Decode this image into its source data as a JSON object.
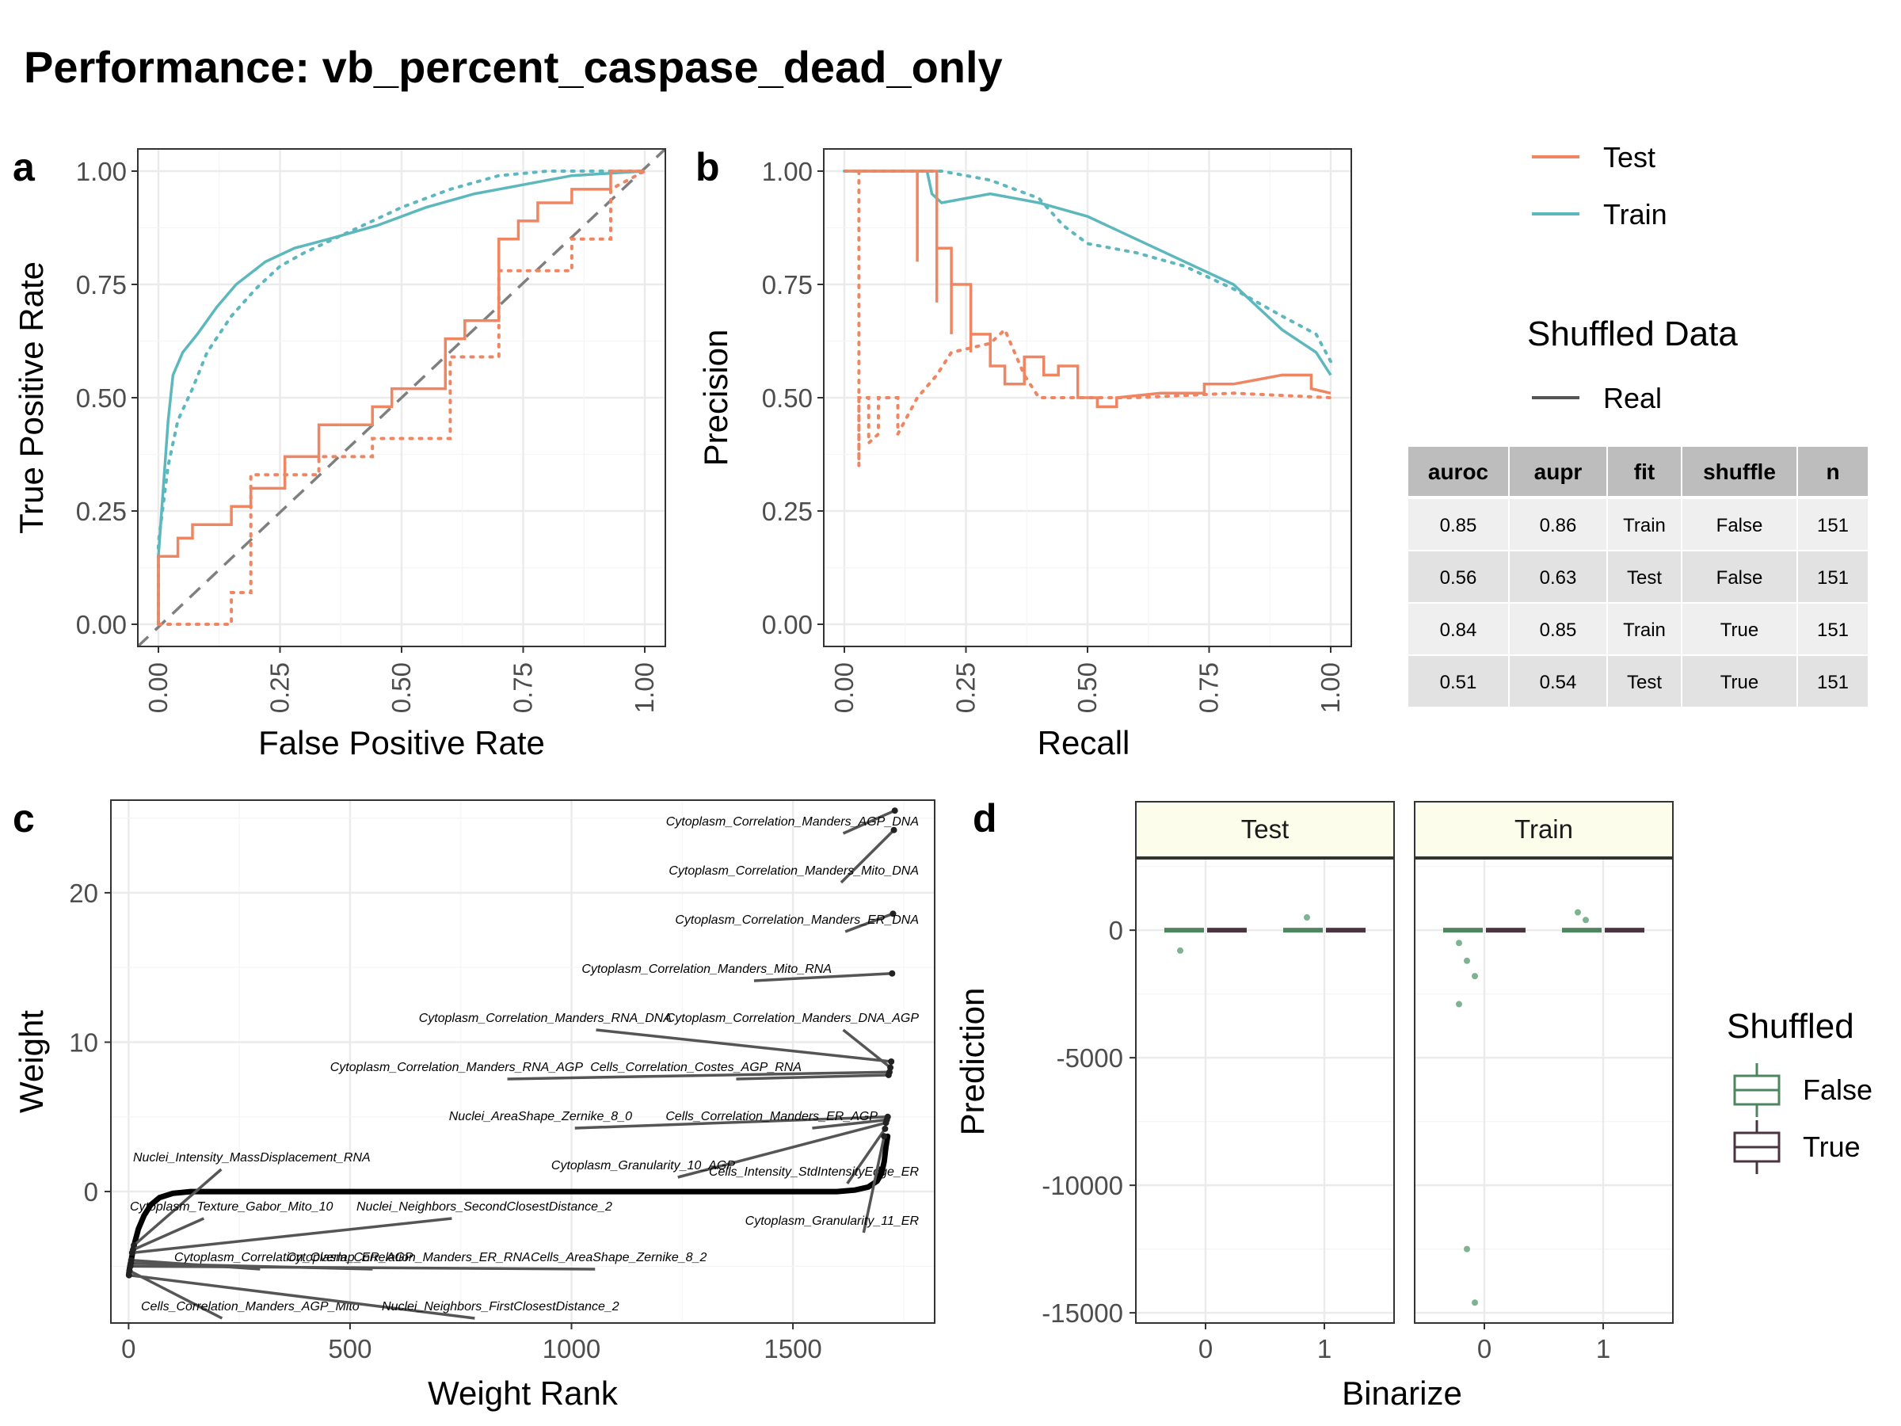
{
  "title": "Performance: vb_percent_caspase_dead_only",
  "colors": {
    "test": "#F08561",
    "train": "#5DB8BE",
    "false": "#4E8560",
    "true": "#4A3440",
    "diag": "#7f7f7f",
    "grid": "#ebebeb"
  },
  "legend": {
    "series": [
      "Test",
      "Train"
    ],
    "shuffle_title": "Shuffled Data",
    "shuffle_item": "Real",
    "shuffled_title": "Shuffled",
    "shuffled_items": [
      "False",
      "True"
    ]
  },
  "table": {
    "headers": [
      "auroc",
      "aupr",
      "fit",
      "shuffle",
      "n"
    ],
    "rows": [
      [
        "0.85",
        "0.86",
        "Train",
        "False",
        "151"
      ],
      [
        "0.56",
        "0.63",
        "Test",
        "False",
        "151"
      ],
      [
        "0.84",
        "0.85",
        "Train",
        "True",
        "151"
      ],
      [
        "0.51",
        "0.54",
        "Test",
        "True",
        "151"
      ]
    ]
  },
  "chart_data": [
    {
      "panel": "a",
      "type": "line",
      "xlabel": "False Positive Rate",
      "ylabel": "True Positive Rate",
      "xlim": [
        0,
        1
      ],
      "ylim": [
        0,
        1
      ],
      "ticks": [
        "0.00",
        "0.25",
        "0.50",
        "0.75",
        "1.00"
      ],
      "series": [
        {
          "name": "Train",
          "shuffled": false,
          "points": [
            [
              0,
              0
            ],
            [
              0,
              0.15
            ],
            [
              0.01,
              0.3
            ],
            [
              0.02,
              0.45
            ],
            [
              0.03,
              0.55
            ],
            [
              0.05,
              0.6
            ],
            [
              0.08,
              0.64
            ],
            [
              0.12,
              0.7
            ],
            [
              0.16,
              0.75
            ],
            [
              0.22,
              0.8
            ],
            [
              0.28,
              0.83
            ],
            [
              0.35,
              0.85
            ],
            [
              0.45,
              0.88
            ],
            [
              0.55,
              0.92
            ],
            [
              0.65,
              0.95
            ],
            [
              0.75,
              0.97
            ],
            [
              0.85,
              0.99
            ],
            [
              1,
              1
            ]
          ]
        },
        {
          "name": "Train",
          "shuffled": true,
          "points": [
            [
              0,
              0
            ],
            [
              0,
              0.18
            ],
            [
              0.02,
              0.35
            ],
            [
              0.04,
              0.45
            ],
            [
              0.07,
              0.52
            ],
            [
              0.1,
              0.6
            ],
            [
              0.15,
              0.68
            ],
            [
              0.2,
              0.74
            ],
            [
              0.25,
              0.79
            ],
            [
              0.3,
              0.82
            ],
            [
              0.4,
              0.87
            ],
            [
              0.5,
              0.92
            ],
            [
              0.6,
              0.96
            ],
            [
              0.7,
              0.99
            ],
            [
              0.8,
              1
            ],
            [
              1,
              1
            ]
          ]
        },
        {
          "name": "Test",
          "shuffled": false,
          "points": [
            [
              0,
              0
            ],
            [
              0,
              0.15
            ],
            [
              0.04,
              0.15
            ],
            [
              0.04,
              0.19
            ],
            [
              0.07,
              0.19
            ],
            [
              0.07,
              0.22
            ],
            [
              0.15,
              0.22
            ],
            [
              0.15,
              0.26
            ],
            [
              0.19,
              0.26
            ],
            [
              0.19,
              0.3
            ],
            [
              0.26,
              0.3
            ],
            [
              0.26,
              0.37
            ],
            [
              0.33,
              0.37
            ],
            [
              0.33,
              0.44
            ],
            [
              0.44,
              0.44
            ],
            [
              0.44,
              0.48
            ],
            [
              0.48,
              0.48
            ],
            [
              0.48,
              0.52
            ],
            [
              0.59,
              0.52
            ],
            [
              0.59,
              0.63
            ],
            [
              0.63,
              0.63
            ],
            [
              0.63,
              0.67
            ],
            [
              0.7,
              0.67
            ],
            [
              0.7,
              0.85
            ],
            [
              0.74,
              0.85
            ],
            [
              0.74,
              0.89
            ],
            [
              0.78,
              0.89
            ],
            [
              0.78,
              0.93
            ],
            [
              0.85,
              0.93
            ],
            [
              0.85,
              0.96
            ],
            [
              0.93,
              0.96
            ],
            [
              0.93,
              1
            ],
            [
              1,
              1
            ]
          ]
        },
        {
          "name": "Test",
          "shuffled": true,
          "points": [
            [
              0,
              0
            ],
            [
              0.15,
              0
            ],
            [
              0.15,
              0.07
            ],
            [
              0.19,
              0.07
            ],
            [
              0.19,
              0.33
            ],
            [
              0.33,
              0.33
            ],
            [
              0.33,
              0.37
            ],
            [
              0.44,
              0.37
            ],
            [
              0.44,
              0.41
            ],
            [
              0.6,
              0.41
            ],
            [
              0.6,
              0.59
            ],
            [
              0.7,
              0.59
            ],
            [
              0.7,
              0.78
            ],
            [
              0.85,
              0.78
            ],
            [
              0.85,
              0.85
            ],
            [
              0.93,
              0.85
            ],
            [
              0.93,
              0.96
            ],
            [
              1,
              1
            ]
          ]
        }
      ]
    },
    {
      "panel": "b",
      "type": "line",
      "xlabel": "Recall",
      "ylabel": "Precision",
      "xlim": [
        0,
        1
      ],
      "ylim": [
        0,
        1
      ],
      "ticks": [
        "0.00",
        "0.25",
        "0.50",
        "0.75",
        "1.00"
      ],
      "series": [
        {
          "name": "Train",
          "shuffled": false,
          "points": [
            [
              0,
              1
            ],
            [
              0.17,
              1
            ],
            [
              0.18,
              0.95
            ],
            [
              0.2,
              0.93
            ],
            [
              0.3,
              0.95
            ],
            [
              0.4,
              0.93
            ],
            [
              0.5,
              0.9
            ],
            [
              0.6,
              0.85
            ],
            [
              0.7,
              0.8
            ],
            [
              0.8,
              0.75
            ],
            [
              0.9,
              0.65
            ],
            [
              0.97,
              0.6
            ],
            [
              1,
              0.55
            ]
          ]
        },
        {
          "name": "Train",
          "shuffled": true,
          "points": [
            [
              0,
              1
            ],
            [
              0.2,
              1
            ],
            [
              0.3,
              0.98
            ],
            [
              0.4,
              0.94
            ],
            [
              0.45,
              0.88
            ],
            [
              0.5,
              0.84
            ],
            [
              0.6,
              0.82
            ],
            [
              0.7,
              0.79
            ],
            [
              0.8,
              0.74
            ],
            [
              0.9,
              0.68
            ],
            [
              0.97,
              0.64
            ],
            [
              1,
              0.58
            ]
          ]
        },
        {
          "name": "Test",
          "shuffled": false,
          "points": [
            [
              0,
              1
            ],
            [
              0.15,
              1
            ],
            [
              0.15,
              0.8
            ],
            [
              0.15,
              1
            ],
            [
              0.19,
              1
            ],
            [
              0.19,
              0.71
            ],
            [
              0.19,
              0.83
            ],
            [
              0.22,
              0.83
            ],
            [
              0.22,
              0.64
            ],
            [
              0.22,
              0.75
            ],
            [
              0.26,
              0.75
            ],
            [
              0.26,
              0.6
            ],
            [
              0.26,
              0.64
            ],
            [
              0.3,
              0.64
            ],
            [
              0.3,
              0.57
            ],
            [
              0.33,
              0.57
            ],
            [
              0.33,
              0.53
            ],
            [
              0.37,
              0.53
            ],
            [
              0.37,
              0.59
            ],
            [
              0.41,
              0.59
            ],
            [
              0.41,
              0.55
            ],
            [
              0.44,
              0.55
            ],
            [
              0.44,
              0.57
            ],
            [
              0.48,
              0.57
            ],
            [
              0.48,
              0.5
            ],
            [
              0.52,
              0.5
            ],
            [
              0.52,
              0.48
            ],
            [
              0.56,
              0.48
            ],
            [
              0.56,
              0.5
            ],
            [
              0.65,
              0.51
            ],
            [
              0.74,
              0.51
            ],
            [
              0.74,
              0.53
            ],
            [
              0.8,
              0.53
            ],
            [
              0.85,
              0.54
            ],
            [
              0.9,
              0.55
            ],
            [
              0.96,
              0.55
            ],
            [
              0.96,
              0.52
            ],
            [
              1,
              0.51
            ]
          ]
        },
        {
          "name": "Test",
          "shuffled": true,
          "points": [
            [
              0.03,
              1
            ],
            [
              0.03,
              0.35
            ],
            [
              0.03,
              0.5
            ],
            [
              0.05,
              0.5
            ],
            [
              0.05,
              0.4
            ],
            [
              0.07,
              0.42
            ],
            [
              0.07,
              0.5
            ],
            [
              0.11,
              0.5
            ],
            [
              0.11,
              0.42
            ],
            [
              0.15,
              0.5
            ],
            [
              0.19,
              0.55
            ],
            [
              0.22,
              0.6
            ],
            [
              0.3,
              0.62
            ],
            [
              0.33,
              0.65
            ],
            [
              0.37,
              0.55
            ],
            [
              0.4,
              0.5
            ],
            [
              0.6,
              0.5
            ],
            [
              0.8,
              0.51
            ],
            [
              1,
              0.5
            ]
          ]
        }
      ]
    },
    {
      "panel": "c",
      "type": "scatter",
      "xlabel": "Weight Rank",
      "ylabel": "Weight",
      "xlim": [
        -40,
        1820
      ],
      "ylim": [
        -8.8,
        26.2
      ],
      "xticks": [
        0,
        500,
        1000,
        1500
      ],
      "yticks": [
        0,
        10,
        20
      ],
      "labeled_points": [
        {
          "label": "Cytoplasm_Correlation_Manders_AGP_DNA",
          "rank": 1730,
          "weight": 25.5
        },
        {
          "label": "Cytoplasm_Correlation_Manders_Mito_DNA",
          "rank": 1728,
          "weight": 24.2
        },
        {
          "label": "Cytoplasm_Correlation_Manders_ER_DNA",
          "rank": 1726,
          "weight": 18.6
        },
        {
          "label": "Cytoplasm_Correlation_Manders_Mito_RNA",
          "rank": 1724,
          "weight": 14.6
        },
        {
          "label": "Cytoplasm_Correlation_Manders_RNA_DNA",
          "rank": 1722,
          "weight": 8.7
        },
        {
          "label": "Cytoplasm_Correlation_Manders_DNA_AGP",
          "rank": 1720,
          "weight": 8.3
        },
        {
          "label": "Cytoplasm_Correlation_Manders_RNA_AGP",
          "rank": 1718,
          "weight": 8.0
        },
        {
          "label": "Cells_Correlation_Costes_AGP_RNA",
          "rank": 1716,
          "weight": 7.8
        },
        {
          "label": "Nuclei_AreaShape_Zernike_8_0",
          "rank": 1714,
          "weight": 5.0
        },
        {
          "label": "Cells_Correlation_Manders_ER_AGP",
          "rank": 1712,
          "weight": 4.8
        },
        {
          "label": "Cytoplasm_Granularity_10_AGP",
          "rank": 1710,
          "weight": 4.6
        },
        {
          "label": "Cells_Intensity_StdIntensityEdge_ER",
          "rank": 1708,
          "weight": 4.2
        },
        {
          "label": "Cytoplasm_Granularity_11_ER",
          "rank": 1706,
          "weight": 3.7
        },
        {
          "label": "Nuclei_Intensity_MassDisplacement_RNA",
          "rank": 12,
          "weight": -3.6
        },
        {
          "label": "Cytoplasm_Texture_Gabor_Mito_10",
          "rank": 10,
          "weight": -3.9
        },
        {
          "label": "Nuclei_Neighbors_SecondClosestDistance_2",
          "rank": 8,
          "weight": -4.1
        },
        {
          "label": "Cytoplasm_Correlation_Overlap_ER_AGP",
          "rank": 6,
          "weight": -4.6
        },
        {
          "label": "Cytoplasm_Correlation_Manders_ER_RNA",
          "rank": 5,
          "weight": -4.8
        },
        {
          "label": "Cells_AreaShape_Zernike_8_2",
          "rank": 4,
          "weight": -5.0
        },
        {
          "label": "Cells_Correlation_Manders_AGP_Mito",
          "rank": 2,
          "weight": -5.3
        },
        {
          "label": "Nuclei_Neighbors_FirstClosestDistance_2",
          "rank": 1,
          "weight": -5.6
        }
      ]
    },
    {
      "panel": "d",
      "type": "scatter",
      "xlabel": "Binarize",
      "ylabel": "Prediction",
      "ylim": [
        -15400,
        2800
      ],
      "yticks": [
        0,
        -5000,
        -10000,
        -15000
      ],
      "ytick_labels": [
        "0",
        "-5000",
        "-10000",
        "-15000"
      ],
      "xtick_labels": [
        "0",
        "1"
      ],
      "facets": [
        "Test",
        "Train"
      ],
      "points": [
        {
          "facet": "Test",
          "binarize": 0,
          "shuffled": "False",
          "y": -800
        },
        {
          "facet": "Test",
          "binarize": 1,
          "shuffled": "False",
          "y": 500
        },
        {
          "facet": "Train",
          "binarize": 0,
          "shuffled": "False",
          "y": -500
        },
        {
          "facet": "Train",
          "binarize": 0,
          "shuffled": "False",
          "y": -1200
        },
        {
          "facet": "Train",
          "binarize": 0,
          "shuffled": "False",
          "y": -1800
        },
        {
          "facet": "Train",
          "binarize": 0,
          "shuffled": "False",
          "y": -2900
        },
        {
          "facet": "Train",
          "binarize": 0,
          "shuffled": "False",
          "y": -12500
        },
        {
          "facet": "Train",
          "binarize": 0,
          "shuffled": "False",
          "y": -14600
        },
        {
          "facet": "Train",
          "binarize": 1,
          "shuffled": "False",
          "y": 700
        },
        {
          "facet": "Train",
          "binarize": 1,
          "shuffled": "False",
          "y": 400
        }
      ]
    }
  ]
}
